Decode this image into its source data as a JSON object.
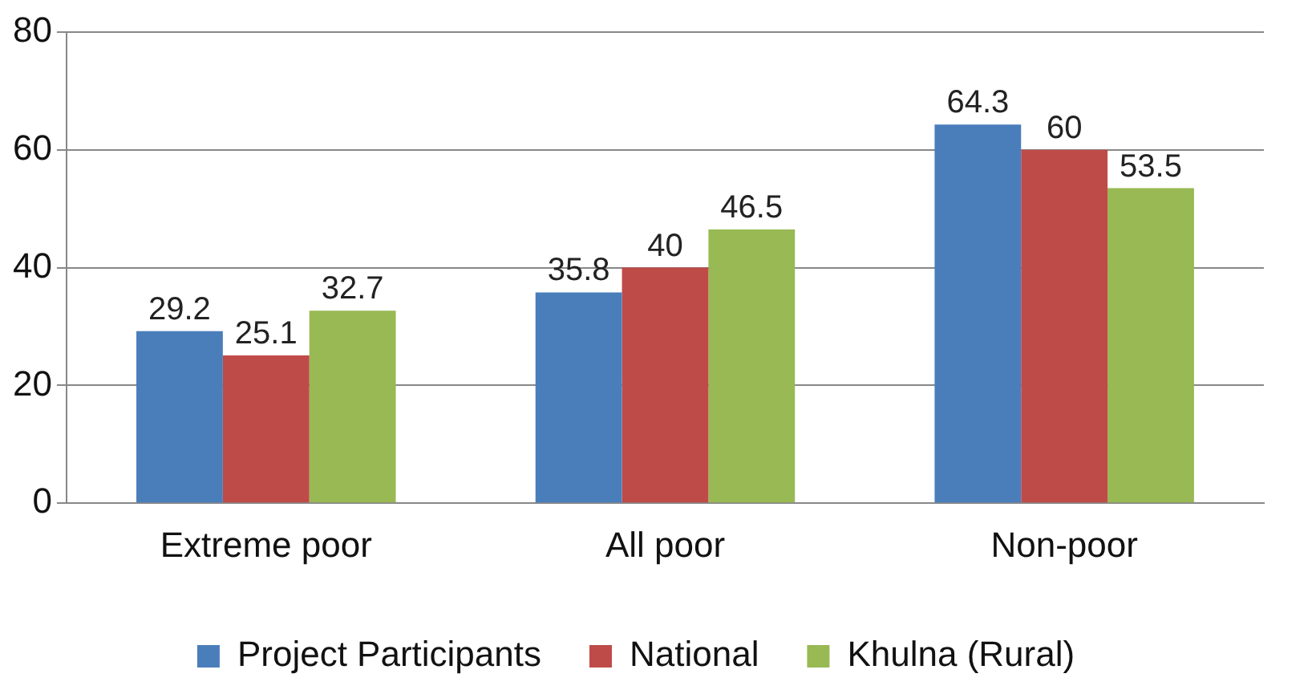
{
  "chart_data": {
    "type": "bar",
    "categories": [
      "Extreme poor",
      "All poor",
      "Non-poor"
    ],
    "series": [
      {
        "name": "Project Participants",
        "color": "#4a7ebb",
        "values": [
          29.2,
          35.8,
          64.3
        ]
      },
      {
        "name": "National",
        "color": "#be4b48",
        "values": [
          25.1,
          40,
          60
        ]
      },
      {
        "name": "Khulna (Rural)",
        "color": "#98b954",
        "values": [
          32.7,
          46.5,
          53.5
        ]
      }
    ],
    "ylim": [
      0,
      80
    ],
    "yticks": [
      0,
      20,
      40,
      60,
      80
    ],
    "grid": "y",
    "legend": "bottom",
    "data_labels": true
  }
}
